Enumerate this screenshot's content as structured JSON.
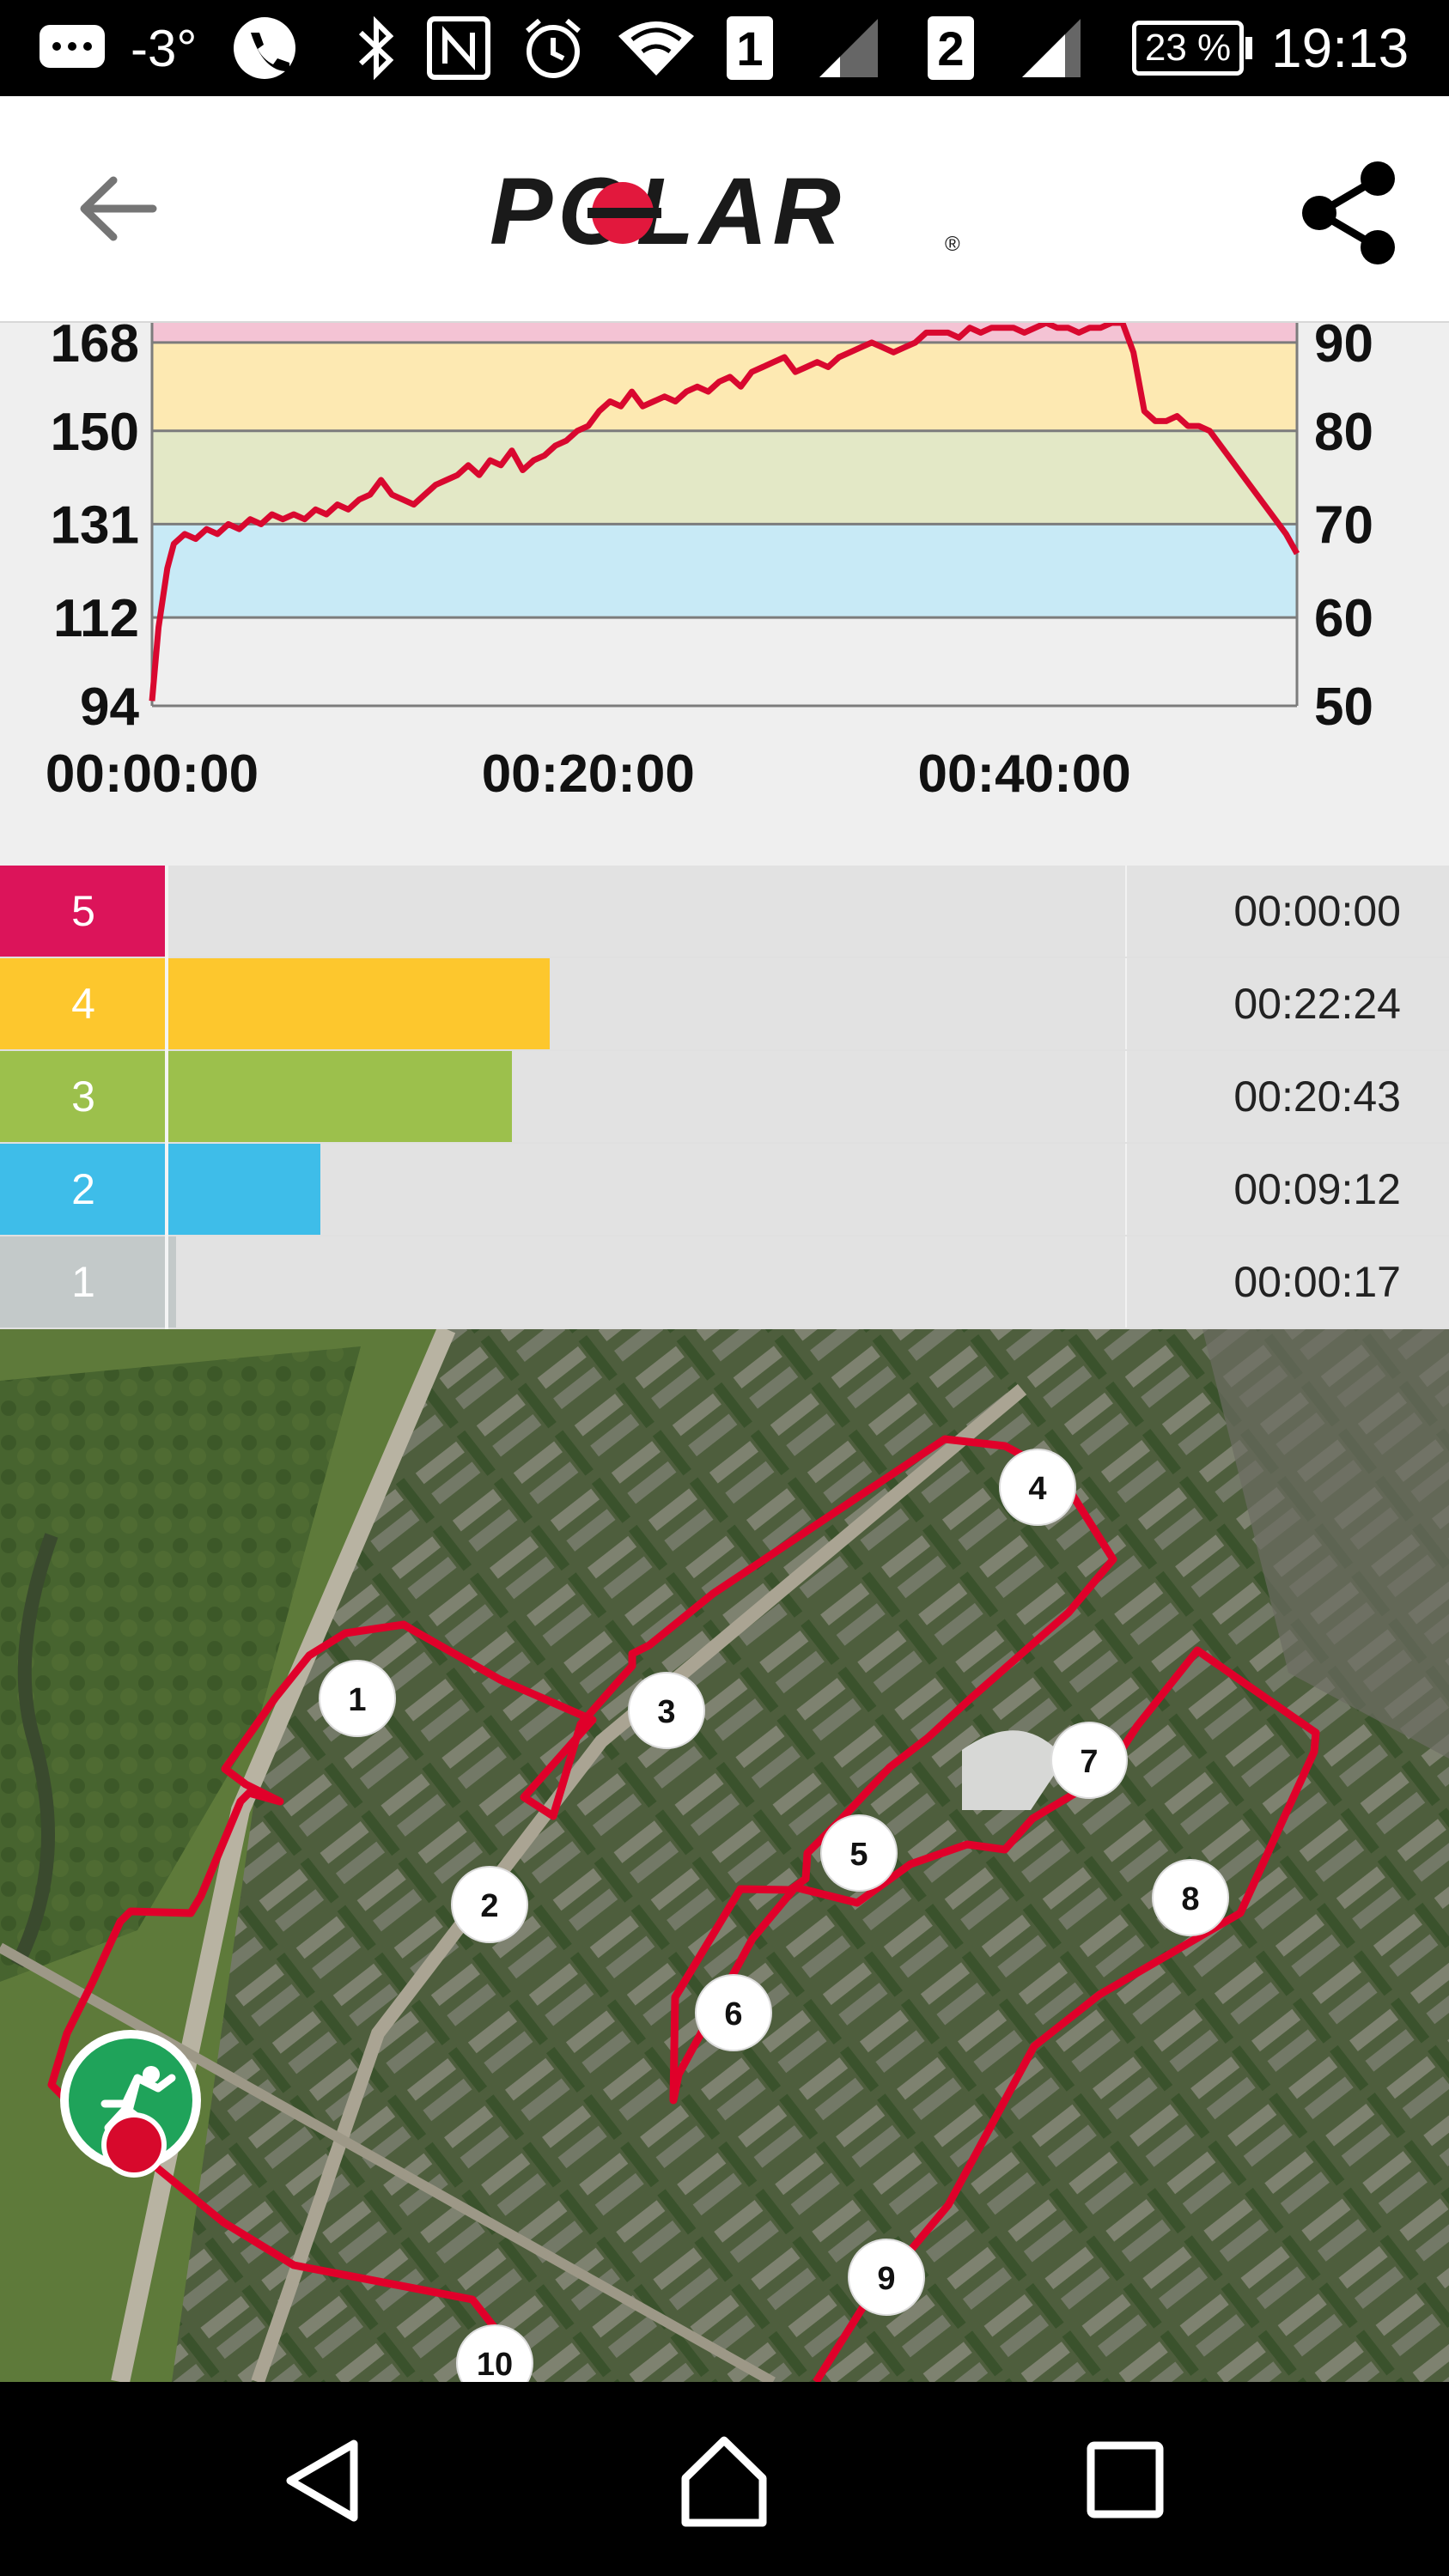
{
  "status_bar": {
    "temperature": "-3°",
    "sim1": "1",
    "sim2": "2",
    "battery": "23 %",
    "time": "19:13",
    "icons": [
      "messages-icon",
      "phone-icon",
      "bluetooth-icon",
      "nfc-icon",
      "alarm-icon",
      "wifi-icon",
      "signal-icon",
      "battery-icon"
    ]
  },
  "app_bar": {
    "logo_text": "POLAR",
    "logo_mark": "®",
    "icons": [
      "back-arrow-icon",
      "share-icon"
    ]
  },
  "chart_data": {
    "type": "line",
    "xlabel": "",
    "ylabel": "",
    "x_ticks": [
      "00:00:00",
      "00:20:00",
      "00:40:00"
    ],
    "y_left_ticks": [
      "168",
      "150",
      "131",
      "112",
      "94"
    ],
    "y_right_ticks": [
      "90",
      "80",
      "70",
      "60",
      "50"
    ],
    "ylim": [
      94,
      172
    ],
    "xlim": [
      0,
      52.5
    ],
    "zone_colors": [
      "#f4c3d4",
      "#fde9b2",
      "#e3e8c6",
      "#c8eaf6",
      "#efefef"
    ],
    "line_color": "#d9082f",
    "series": [
      {
        "x": [
          0,
          0.3,
          0.7,
          1,
          1.5,
          2,
          2.5,
          3,
          3.5,
          4,
          4.5,
          5,
          5.5,
          6,
          6.5,
          7,
          7.5,
          8,
          8.5,
          9,
          9.5,
          10,
          10.5,
          11,
          11.5,
          12,
          12.5,
          13,
          13.5,
          14,
          14.5,
          15,
          15.5,
          16,
          16.5,
          17,
          17.5,
          18,
          18.5,
          19,
          19.5,
          20,
          20.5,
          21,
          21.5,
          22,
          22.5,
          23,
          23.5,
          24,
          24.5,
          25,
          25.5,
          26,
          26.5,
          27,
          27.5,
          28,
          28.5,
          29,
          29.5,
          30,
          30.5,
          31,
          31.5,
          32,
          32.5,
          33,
          33.5,
          34,
          34.5,
          35,
          35.5,
          36,
          36.5,
          37,
          37.5,
          38,
          38.5,
          39,
          39.5,
          40,
          40.5,
          41,
          41.5,
          42,
          42.5,
          43,
          43.5,
          44,
          44.5,
          45,
          45.5,
          46,
          46.5,
          47,
          47.5,
          48,
          48.5,
          49,
          49.5,
          50,
          50.5,
          51,
          51.5,
          52,
          52.5
        ],
        "values": [
          95,
          110,
          122,
          127,
          129,
          128,
          130,
          129,
          131,
          130,
          132,
          131,
          133,
          132,
          133,
          132,
          134,
          133,
          135,
          134,
          136,
          137,
          140,
          137,
          136,
          135,
          137,
          139,
          140,
          141,
          143,
          141,
          144,
          143,
          146,
          142,
          144,
          145,
          147,
          148,
          150,
          151,
          154,
          156,
          155,
          158,
          155,
          156,
          157,
          156,
          158,
          159,
          158,
          160,
          161,
          159,
          162,
          163,
          164,
          165,
          162,
          163,
          164,
          163,
          165,
          166,
          167,
          168,
          167,
          166,
          167,
          168,
          170,
          170,
          170,
          169,
          171,
          170,
          171,
          171,
          171,
          170,
          171,
          172,
          171,
          171,
          170,
          171,
          171,
          172,
          172,
          166,
          154,
          152,
          152,
          153,
          151,
          151,
          150,
          147,
          144,
          141,
          138,
          135,
          132,
          129,
          125
        ]
      }
    ]
  },
  "zones": {
    "rows": [
      {
        "label": "5",
        "time": "00:00:00",
        "color": "#dc145a",
        "fill": 0.0
      },
      {
        "label": "4",
        "time": "00:22:24",
        "color": "#fdc72d",
        "fill": 0.4
      },
      {
        "label": "3",
        "time": "00:20:43",
        "color": "#9cc04c",
        "fill": 0.36
      },
      {
        "label": "2",
        "time": "00:09:12",
        "color": "#3ebde9",
        "fill": 0.16
      },
      {
        "label": "1",
        "time": "00:00:17",
        "color": "#c3c9c9",
        "fill": 0.01
      }
    ]
  },
  "map": {
    "markers": [
      "1",
      "2",
      "3",
      "4",
      "5",
      "6",
      "7",
      "8",
      "9",
      "10"
    ],
    "start_icon": "runner-start-icon",
    "route_color": "#e0002a"
  },
  "nav_bar": {
    "icons": [
      "back-nav-icon",
      "home-nav-icon",
      "recents-nav-icon"
    ]
  }
}
